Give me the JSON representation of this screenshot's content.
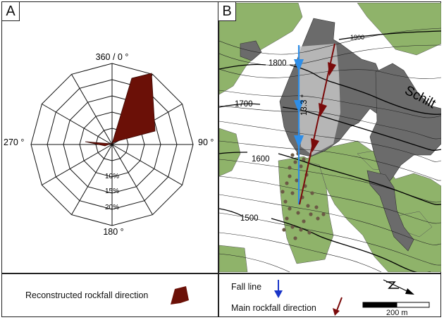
{
  "panelA": {
    "tag": "A",
    "labels": {
      "north": "360 / 0 °",
      "east": "90 °",
      "south": "180 °",
      "west": "270 °"
    },
    "ring_labels": [
      "10%",
      "15%",
      "20%"
    ],
    "colors": {
      "rose": "#6b1007",
      "grid": "#111111"
    }
  },
  "panelB": {
    "tag": "B",
    "place_label": "Schilt",
    "contour_labels": [
      "1900",
      "1800",
      "1700",
      "1600",
      "1500"
    ],
    "angle_label": "13.3 °",
    "colors": {
      "vegetation": "#8fb36a",
      "rock": "#6b6b6b",
      "fall_line": "#2e8ee8",
      "rockfall_arrow": "#7a0a0a",
      "boulders": "#6b5a45"
    }
  },
  "legend": {
    "rose_label": "Reconstructed rockfall direction",
    "fall_line_label": "Fall line",
    "rockfall_label": "Main rockfall direction",
    "scale_label": "200 m",
    "north_icon": "north-arrow-icon"
  }
}
